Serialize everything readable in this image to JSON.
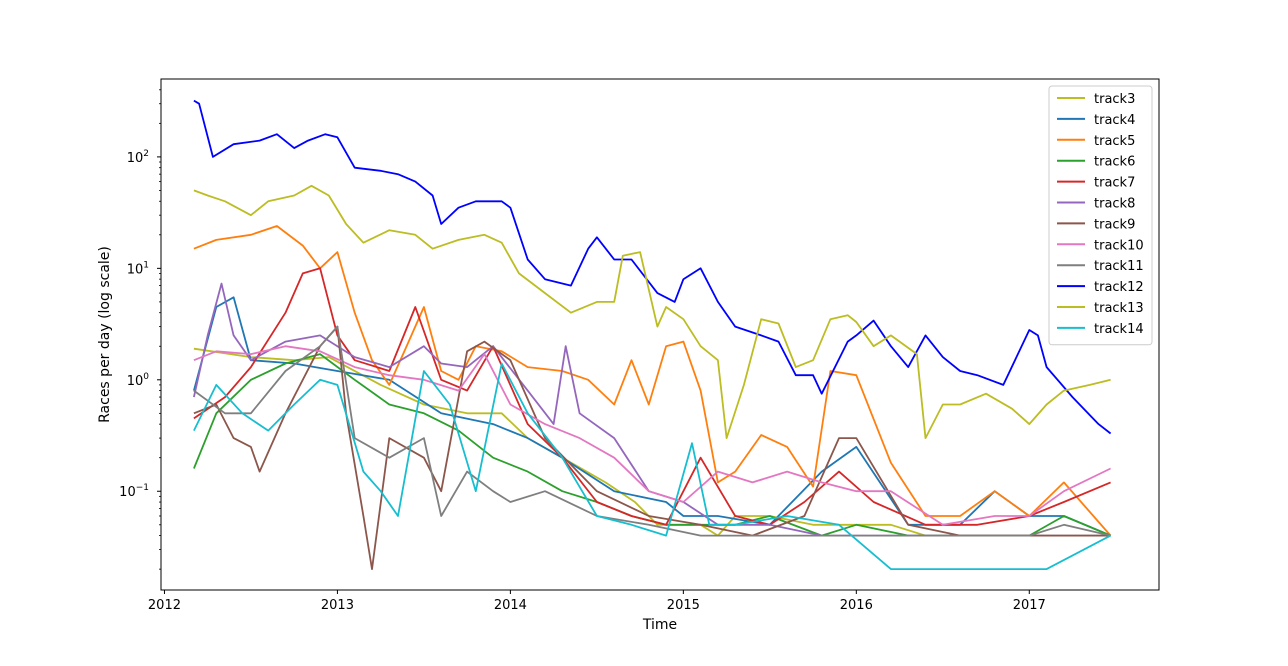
{
  "chart_data": {
    "type": "line",
    "title": "",
    "xlabel": "Time",
    "ylabel": "Races per day (log scale)",
    "yscale": "log",
    "xlim": [
      2011.98,
      2017.75
    ],
    "ylim": [
      0.013,
      500
    ],
    "x_ticks": [
      2012,
      2013,
      2014,
      2015,
      2016,
      2017
    ],
    "x_tick_labels": [
      "2012",
      "2013",
      "2014",
      "2015",
      "2016",
      "2017"
    ],
    "y_ticks": [
      0.1,
      1,
      10,
      100
    ],
    "y_tick_labels": [
      [
        "10",
        "−1"
      ],
      [
        "10",
        "0"
      ],
      [
        "10",
        "1"
      ],
      [
        "10",
        "2"
      ]
    ],
    "grid": false,
    "legend": {
      "position": "upper right"
    },
    "series": [
      {
        "name": "track3",
        "color": "#bcbd22",
        "x": [
          2012.17,
          2012.5,
          2012.75,
          2012.95,
          2013.25,
          2013.5,
          2013.75,
          2013.95,
          2014.1,
          2014.3,
          2014.55,
          2014.72,
          2014.85,
          2015.0,
          2015.1,
          2015.2,
          2015.3,
          2015.5,
          2015.75,
          2016.0,
          2016.2,
          2016.4,
          2016.7,
          2017.0,
          2017.3,
          2017.47
        ],
        "y": [
          1.9,
          1.6,
          1.5,
          1.6,
          0.9,
          0.6,
          0.5,
          0.5,
          0.3,
          0.2,
          0.12,
          0.08,
          0.05,
          0.05,
          0.05,
          0.04,
          0.06,
          0.06,
          0.05,
          0.05,
          0.05,
          0.04,
          0.04,
          0.04,
          0.04,
          0.04
        ]
      },
      {
        "name": "track4",
        "color": "#1f77b4",
        "x": [
          2012.17,
          2012.3,
          2012.4,
          2012.5,
          2012.75,
          2013.0,
          2013.3,
          2013.6,
          2013.9,
          2014.1,
          2014.3,
          2014.6,
          2014.9,
          2015.0,
          2015.2,
          2015.5,
          2015.8,
          2016.0,
          2016.3,
          2016.6,
          2016.8,
          2017.0,
          2017.2,
          2017.47
        ],
        "y": [
          0.8,
          4.5,
          5.5,
          1.5,
          1.4,
          1.2,
          1.0,
          0.5,
          0.4,
          0.3,
          0.2,
          0.1,
          0.08,
          0.06,
          0.06,
          0.05,
          0.15,
          0.25,
          0.05,
          0.05,
          0.1,
          0.06,
          0.06,
          0.04
        ]
      },
      {
        "name": "track5",
        "color": "#ff7f0e",
        "x": [
          2012.17,
          2012.3,
          2012.5,
          2012.65,
          2012.8,
          2012.9,
          2013.0,
          2013.1,
          2013.2,
          2013.3,
          2013.4,
          2013.5,
          2013.6,
          2013.7,
          2013.8,
          2013.95,
          2014.1,
          2014.3,
          2014.45,
          2014.6,
          2014.7,
          2014.8,
          2014.9,
          2015.0,
          2015.1,
          2015.2,
          2015.3,
          2015.45,
          2015.6,
          2015.75,
          2015.85,
          2016.0,
          2016.2,
          2016.4,
          2016.6,
          2016.8,
          2017.0,
          2017.2,
          2017.47
        ],
        "y": [
          15,
          18,
          20,
          24,
          16,
          10,
          14,
          4,
          1.5,
          0.9,
          2,
          4.5,
          1.2,
          1,
          2,
          1.8,
          1.3,
          1.2,
          1,
          0.6,
          1.5,
          0.6,
          2,
          2.2,
          0.8,
          0.12,
          0.15,
          0.32,
          0.25,
          0.11,
          1.2,
          1.1,
          0.18,
          0.06,
          0.06,
          0.1,
          0.06,
          0.12,
          0.04
        ]
      },
      {
        "name": "track6",
        "color": "#2ca02c",
        "x": [
          2012.17,
          2012.3,
          2012.5,
          2012.7,
          2012.9,
          2013.1,
          2013.3,
          2013.5,
          2013.7,
          2013.9,
          2014.1,
          2014.3,
          2014.5,
          2014.7,
          2014.9,
          2015.1,
          2015.3,
          2015.5,
          2015.8,
          2016.0,
          2016.3,
          2016.6,
          2017.0,
          2017.2,
          2017.47
        ],
        "y": [
          0.16,
          0.5,
          1.0,
          1.4,
          1.7,
          1.0,
          0.6,
          0.5,
          0.35,
          0.2,
          0.15,
          0.1,
          0.08,
          0.06,
          0.05,
          0.05,
          0.05,
          0.06,
          0.04,
          0.05,
          0.04,
          0.04,
          0.04,
          0.06,
          0.04
        ]
      },
      {
        "name": "track7",
        "color": "#d62728",
        "x": [
          2012.17,
          2012.35,
          2012.5,
          2012.7,
          2012.8,
          2012.9,
          2013.0,
          2013.1,
          2013.3,
          2013.45,
          2013.6,
          2013.75,
          2013.9,
          2014.1,
          2014.3,
          2014.5,
          2014.7,
          2014.9,
          2015.1,
          2015.3,
          2015.5,
          2015.7,
          2015.9,
          2016.1,
          2016.4,
          2016.7,
          2017.0,
          2017.2,
          2017.47
        ],
        "y": [
          0.45,
          0.7,
          1.3,
          4,
          9,
          10,
          2.5,
          1.5,
          1.2,
          4.5,
          1.0,
          0.8,
          2.0,
          0.4,
          0.2,
          0.08,
          0.06,
          0.05,
          0.2,
          0.06,
          0.05,
          0.08,
          0.15,
          0.08,
          0.05,
          0.05,
          0.06,
          0.08,
          0.12
        ]
      },
      {
        "name": "track8",
        "color": "#9467bd",
        "x": [
          2012.17,
          2012.25,
          2012.33,
          2012.4,
          2012.5,
          2012.7,
          2012.9,
          2013.1,
          2013.3,
          2013.5,
          2013.6,
          2013.75,
          2013.9,
          2014.1,
          2014.25,
          2014.32,
          2014.4,
          2014.6,
          2014.8,
          2015.0,
          2015.2,
          2015.5,
          2015.8,
          2016.1,
          2016.4,
          2016.7,
          2017.0,
          2017.3,
          2017.47
        ],
        "y": [
          0.7,
          2.5,
          7.3,
          2.5,
          1.5,
          2.2,
          2.5,
          1.6,
          1.3,
          2.0,
          1.4,
          1.3,
          2.0,
          0.8,
          0.4,
          2.0,
          0.5,
          0.3,
          0.1,
          0.08,
          0.05,
          0.05,
          0.04,
          0.04,
          0.04,
          0.04,
          0.04,
          0.04,
          0.04
        ]
      },
      {
        "name": "track9",
        "color": "#8c564b",
        "x": [
          2012.17,
          2012.3,
          2012.4,
          2012.5,
          2012.55,
          2012.7,
          2012.9,
          2013.0,
          2013.05,
          2013.15,
          2013.2,
          2013.3,
          2013.5,
          2013.6,
          2013.75,
          2013.85,
          2014.0,
          2014.2,
          2014.5,
          2014.8,
          2015.1,
          2015.4,
          2015.7,
          2015.9,
          2016.0,
          2016.3,
          2016.6,
          2017.0,
          2017.47
        ],
        "y": [
          0.5,
          0.6,
          0.3,
          0.25,
          0.15,
          0.5,
          2,
          3,
          0.5,
          0.06,
          0.02,
          0.3,
          0.2,
          0.1,
          1.8,
          2.2,
          1.5,
          0.3,
          0.1,
          0.06,
          0.05,
          0.04,
          0.06,
          0.3,
          0.3,
          0.05,
          0.04,
          0.04,
          0.04
        ]
      },
      {
        "name": "track10",
        "color": "#e377c2",
        "x": [
          2012.17,
          2012.3,
          2012.5,
          2012.7,
          2012.9,
          2013.1,
          2013.3,
          2013.5,
          2013.7,
          2013.85,
          2014.0,
          2014.2,
          2014.4,
          2014.6,
          2014.8,
          2015.0,
          2015.2,
          2015.4,
          2015.6,
          2015.8,
          2016.0,
          2016.2,
          2016.5,
          2016.8,
          2017.0,
          2017.2,
          2017.47
        ],
        "y": [
          1.5,
          1.8,
          1.7,
          2.0,
          1.8,
          1.3,
          1.1,
          1.0,
          0.8,
          1.7,
          0.6,
          0.4,
          0.3,
          0.2,
          0.1,
          0.08,
          0.15,
          0.12,
          0.15,
          0.12,
          0.1,
          0.1,
          0.05,
          0.06,
          0.06,
          0.1,
          0.16
        ]
      },
      {
        "name": "track11",
        "color": "#7f7f7f",
        "x": [
          2012.17,
          2012.35,
          2012.5,
          2012.7,
          2012.9,
          2013.0,
          2013.1,
          2013.3,
          2013.5,
          2013.6,
          2013.75,
          2013.9,
          2014.0,
          2014.2,
          2014.5,
          2014.8,
          2015.1,
          2015.4,
          2015.7,
          2016.0,
          2016.3,
          2016.6,
          2017.0,
          2017.2,
          2017.47
        ],
        "y": [
          0.8,
          0.5,
          0.5,
          1.2,
          2.0,
          3.0,
          0.3,
          0.2,
          0.3,
          0.06,
          0.15,
          0.1,
          0.08,
          0.1,
          0.06,
          0.05,
          0.04,
          0.04,
          0.04,
          0.04,
          0.04,
          0.04,
          0.04,
          0.05,
          0.04
        ]
      },
      {
        "name": "track12",
        "color": "#0000ff",
        "x": [
          2012.17,
          2012.2,
          2012.28,
          2012.4,
          2012.55,
          2012.65,
          2012.75,
          2012.83,
          2012.93,
          2013.0,
          2013.1,
          2013.25,
          2013.35,
          2013.45,
          2013.55,
          2013.6,
          2013.7,
          2013.8,
          2013.95,
          2014.0,
          2014.1,
          2014.2,
          2014.35,
          2014.45,
          2014.5,
          2014.6,
          2014.7,
          2014.85,
          2014.95,
          2015.0,
          2015.1,
          2015.2,
          2015.3,
          2015.45,
          2015.55,
          2015.65,
          2015.75,
          2015.8,
          2015.95,
          2016.0,
          2016.1,
          2016.2,
          2016.3,
          2016.4,
          2016.5,
          2016.6,
          2016.7,
          2016.85,
          2017.0,
          2017.05,
          2017.1,
          2017.25,
          2017.4,
          2017.47
        ],
        "y": [
          320,
          300,
          100,
          130,
          140,
          160,
          120,
          140,
          160,
          150,
          80,
          75,
          70,
          60,
          45,
          25,
          35,
          40,
          40,
          35,
          12,
          8,
          7,
          15,
          19,
          12,
          12,
          6,
          5,
          8,
          10,
          5,
          3,
          2.5,
          2.2,
          1.1,
          1.1,
          0.75,
          2.2,
          2.5,
          3.4,
          2.0,
          1.3,
          2.5,
          1.6,
          1.2,
          1.1,
          0.9,
          2.8,
          2.5,
          1.3,
          0.7,
          0.4,
          0.33
        ]
      },
      {
        "name": "track13",
        "color": "#bcbd22",
        "x": [
          2012.17,
          2012.25,
          2012.35,
          2012.5,
          2012.6,
          2012.75,
          2012.85,
          2012.95,
          2013.05,
          2013.15,
          2013.3,
          2013.45,
          2013.55,
          2013.7,
          2013.85,
          2013.95,
          2014.05,
          2014.2,
          2014.35,
          2014.5,
          2014.6,
          2014.65,
          2014.75,
          2014.85,
          2014.9,
          2015.0,
          2015.1,
          2015.2,
          2015.25,
          2015.35,
          2015.45,
          2015.55,
          2015.65,
          2015.75,
          2015.85,
          2015.95,
          2016.0,
          2016.1,
          2016.2,
          2016.35,
          2016.4,
          2016.5,
          2016.6,
          2016.75,
          2016.9,
          2017.0,
          2017.1,
          2017.2,
          2017.35,
          2017.47
        ],
        "y": [
          50,
          45,
          40,
          30,
          40,
          45,
          55,
          45,
          25,
          17,
          22,
          20,
          15,
          18,
          20,
          17,
          9,
          6,
          4,
          5,
          5,
          13,
          14,
          3,
          4.5,
          3.5,
          2.0,
          1.5,
          0.3,
          0.9,
          3.5,
          3.2,
          1.3,
          1.5,
          3.5,
          3.8,
          3.3,
          2.0,
          2.5,
          1.7,
          0.3,
          0.6,
          0.6,
          0.75,
          0.55,
          0.4,
          0.6,
          0.8,
          0.9,
          1.0
        ]
      },
      {
        "name": "track14",
        "color": "#17becf",
        "x": [
          2012.17,
          2012.3,
          2012.45,
          2012.6,
          2012.75,
          2012.9,
          2013.0,
          2013.15,
          2013.25,
          2013.35,
          2013.5,
          2013.65,
          2013.8,
          2013.95,
          2014.1,
          2014.3,
          2014.5,
          2014.7,
          2014.9,
          2015.05,
          2015.15,
          2015.3,
          2015.6,
          2015.9,
          2016.2,
          2016.5,
          2016.8,
          2017.1,
          2017.47
        ],
        "y": [
          0.35,
          0.9,
          0.5,
          0.35,
          0.6,
          1.0,
          0.9,
          0.15,
          0.1,
          0.06,
          1.2,
          0.6,
          0.1,
          1.4,
          0.5,
          0.2,
          0.06,
          0.05,
          0.04,
          0.27,
          0.05,
          0.05,
          0.06,
          0.05,
          0.02,
          0.02,
          0.02,
          0.02,
          0.04
        ]
      }
    ]
  }
}
